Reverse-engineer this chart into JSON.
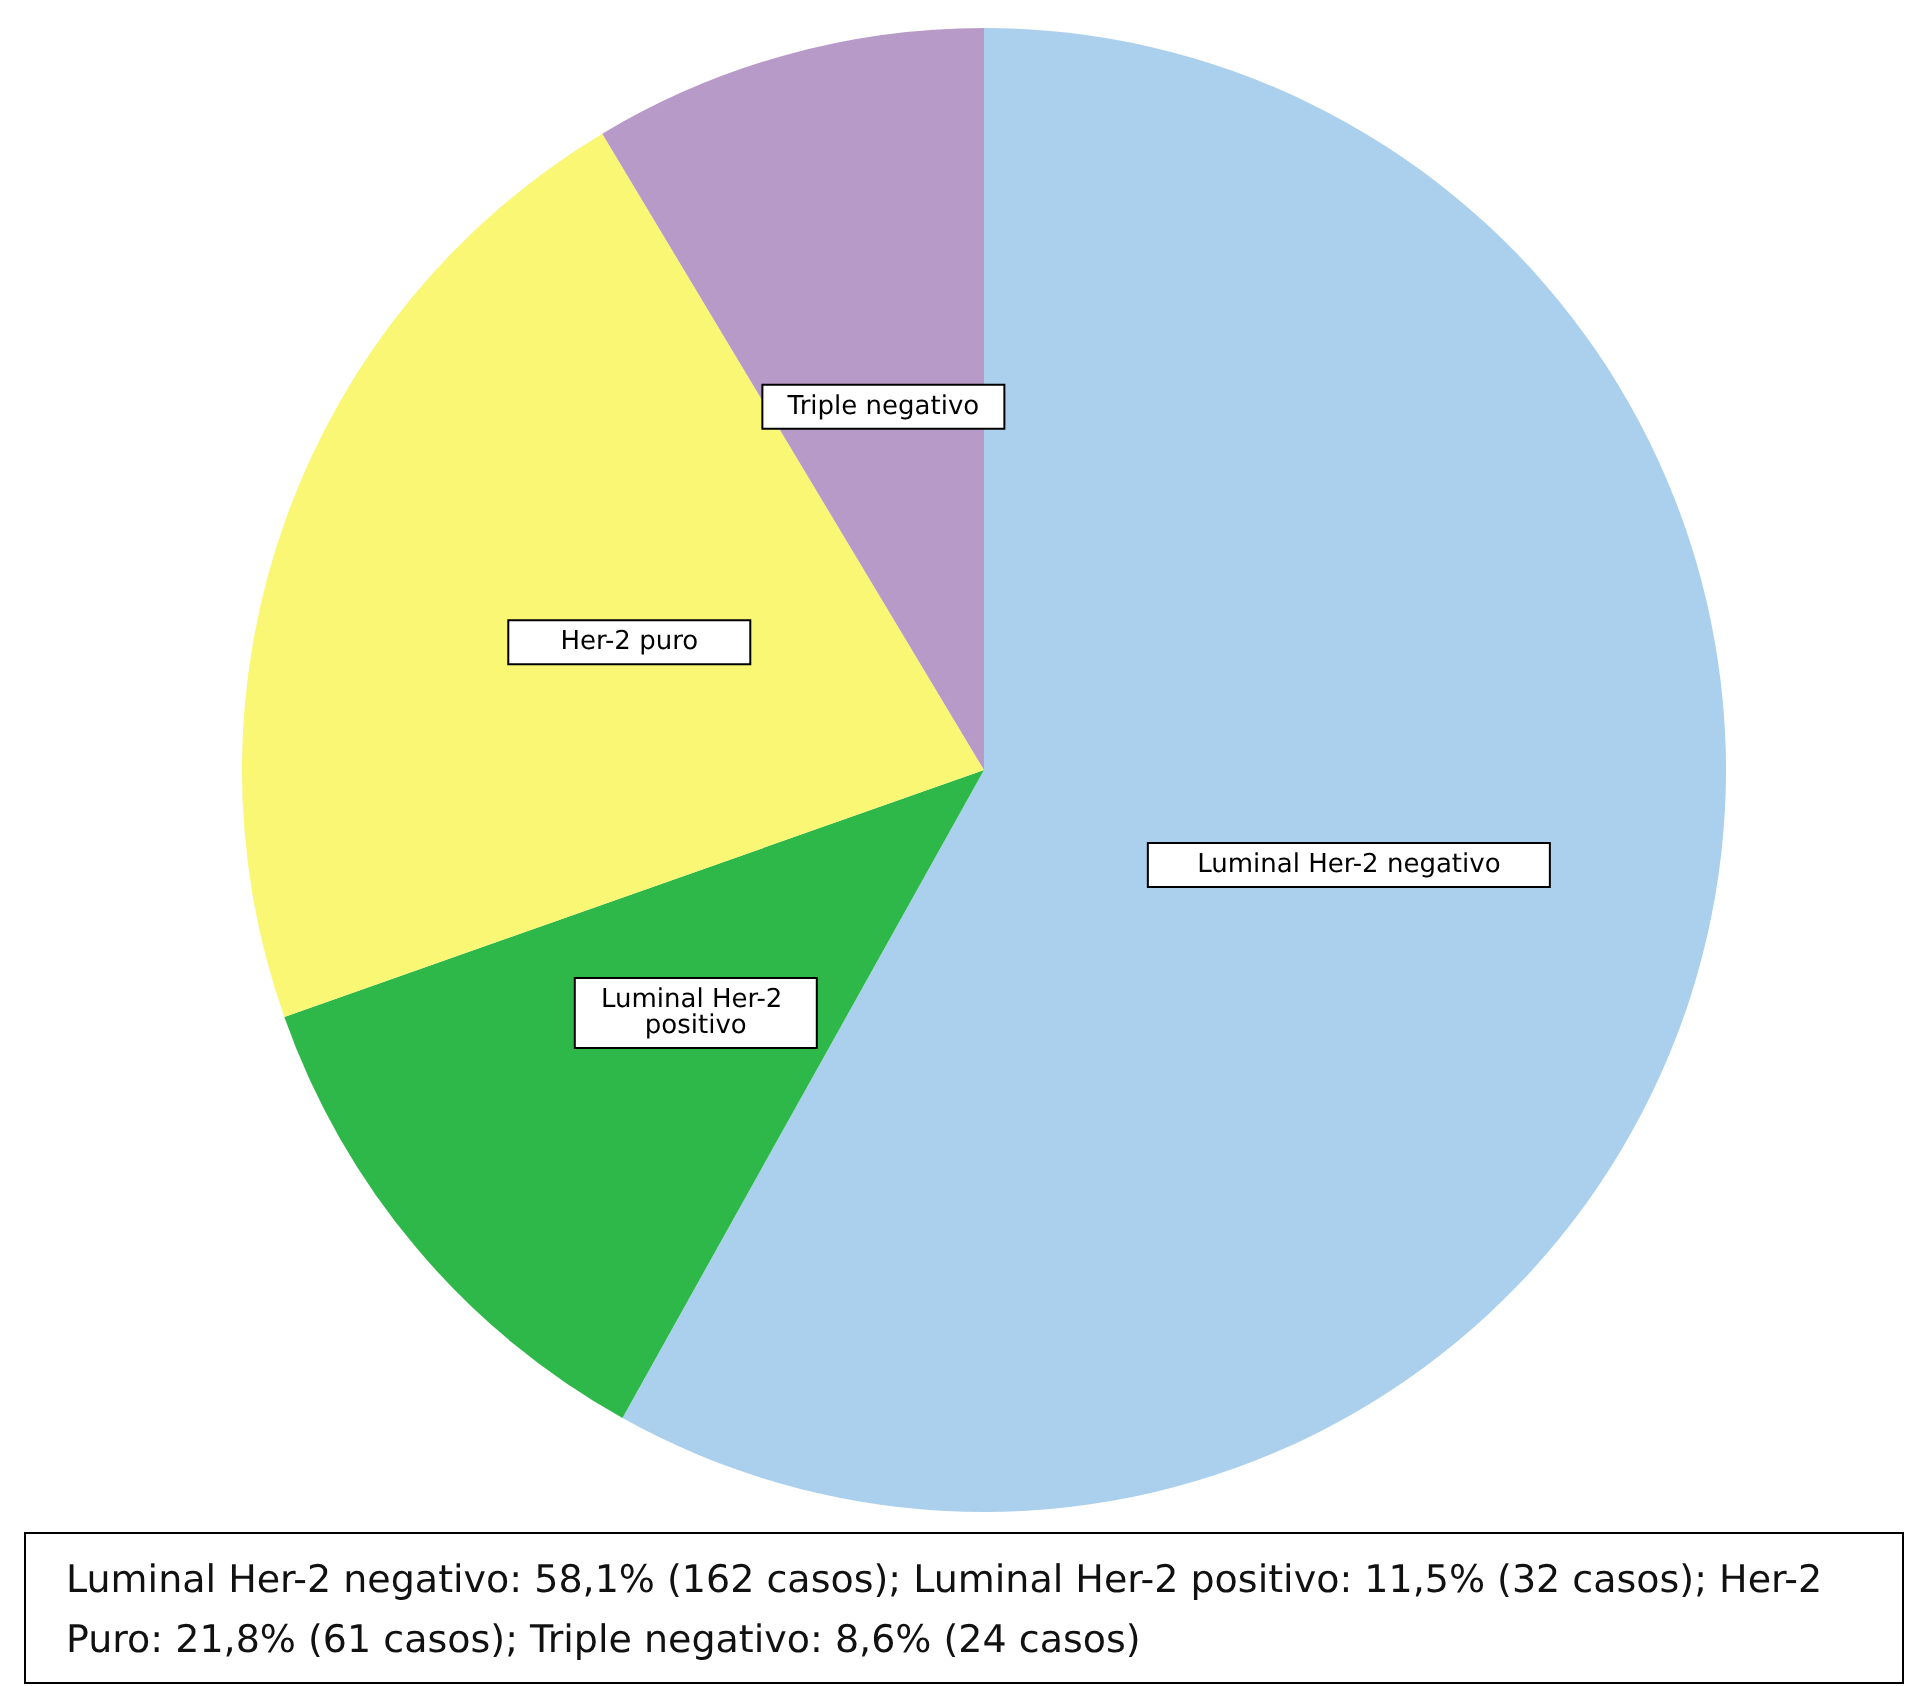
{
  "chart_data": {
    "type": "pie",
    "categories": [
      "Luminal Her-2 negativo",
      "Luminal Her-2 positivo",
      "Her-2 puro",
      "Triple negativo"
    ],
    "values": [
      58.1,
      11.5,
      21.8,
      8.6
    ],
    "colors": [
      "#abd0ee",
      "#2eb84a",
      "#f9f774",
      "#b89ac9"
    ],
    "annotations": [
      "Luminal Her-2 negativo: 58,1% (162 casos); Luminal Her-2 positivo: 11,5% (32 casos); Her-2 Puro: 21,8% (61 casos); Triple negativo: 8,6% (24 casos)"
    ]
  }
}
